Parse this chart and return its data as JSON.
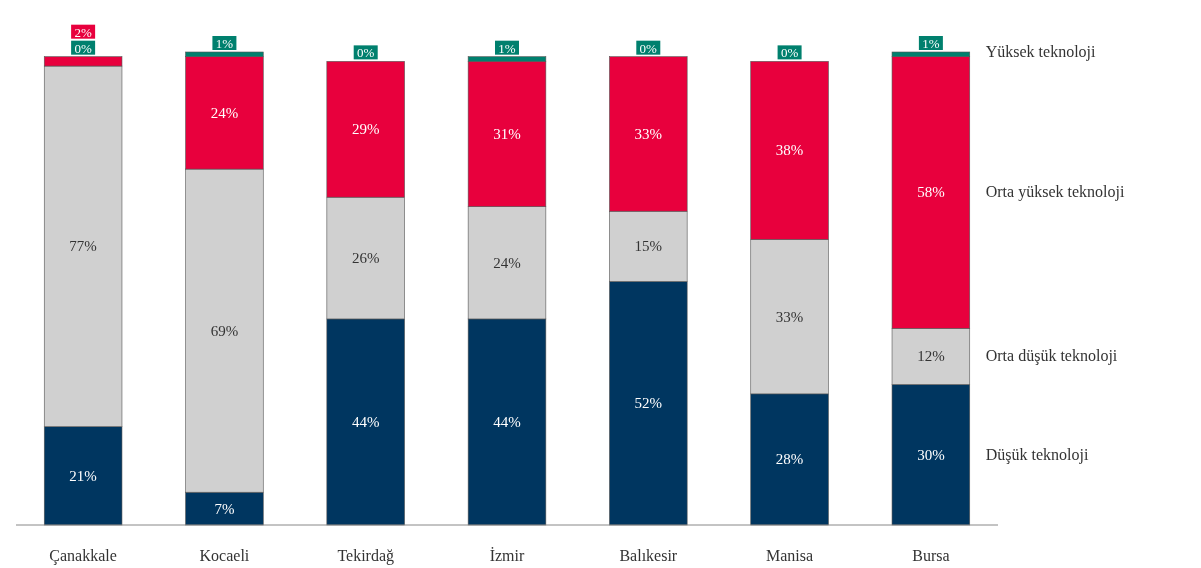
{
  "chart_data": {
    "type": "bar",
    "stacked": true,
    "categories": [
      "Çanakkale",
      "Kocaeli",
      "Tekirdağ",
      "İzmir",
      "Balıkesir",
      "Manisa",
      "Bursa"
    ],
    "series": [
      {
        "name": "Düşük teknoloji",
        "color": "#003660",
        "values": [
          21,
          7,
          44,
          44,
          52,
          28,
          30
        ],
        "value_labels": [
          "21%",
          "7%",
          "44%",
          "44%",
          "52%",
          "28%",
          "30%"
        ]
      },
      {
        "name": "Orta düşük teknoloji",
        "color": "#d0d0d0",
        "values": [
          77,
          69,
          26,
          24,
          15,
          33,
          12
        ],
        "value_labels": [
          "77%",
          "69%",
          "26%",
          "24%",
          "15%",
          "33%",
          "12%"
        ]
      },
      {
        "name": "Orta yüksek teknoloji",
        "color": "#e8003d",
        "values": [
          2,
          24,
          29,
          31,
          33,
          38,
          58
        ],
        "value_labels": [
          "2%",
          "24%",
          "29%",
          "31%",
          "33%",
          "38%",
          "58%"
        ]
      },
      {
        "name": "Yüksek teknoloji",
        "color": "#00806e",
        "values": [
          0,
          1,
          0,
          1,
          0,
          0,
          1
        ],
        "value_labels": [
          "0%",
          "1%",
          "0%",
          "1%",
          "0%",
          "0%",
          "1%"
        ]
      }
    ]
  }
}
